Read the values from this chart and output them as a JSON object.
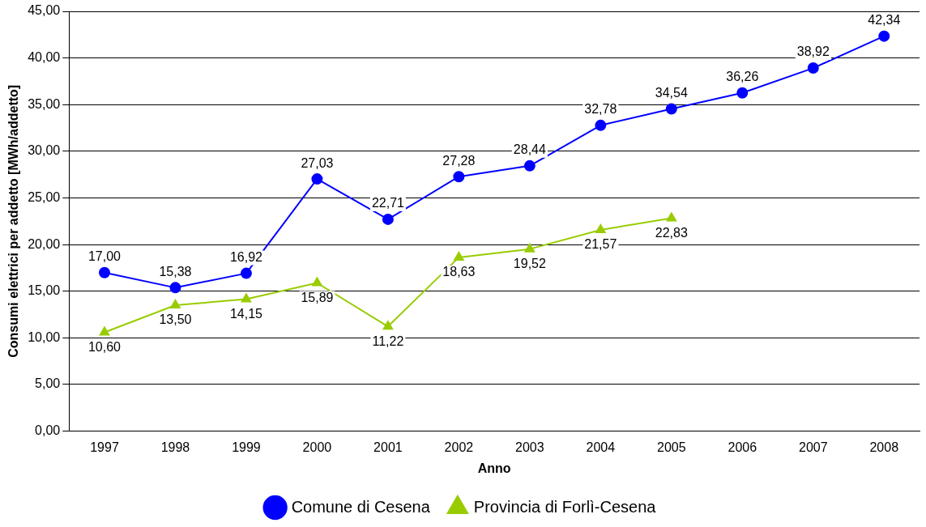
{
  "chart_data": {
    "type": "line",
    "xlabel": "Anno",
    "ylabel": "Consumi elettrici per addetto [MWh/addetto]",
    "categories": [
      "1997",
      "1998",
      "1999",
      "2000",
      "2001",
      "2002",
      "2003",
      "2004",
      "2005",
      "2006",
      "2007",
      "2008"
    ],
    "series": [
      {
        "name": "Comune di Cesena",
        "color": "#0000ff",
        "marker": "circle",
        "values": [
          17.0,
          15.38,
          16.92,
          27.03,
          22.71,
          27.28,
          28.44,
          32.78,
          34.54,
          36.26,
          38.92,
          42.34
        ],
        "value_labels": [
          "17,00",
          "15,38",
          "16,92",
          "27,03",
          "22,71",
          "27,28",
          "28,44",
          "32,78",
          "34,54",
          "36,26",
          "38,92",
          "42,34"
        ]
      },
      {
        "name": "Provincia di Forlì-Cesena",
        "color": "#99cc00",
        "marker": "triangle",
        "values": [
          10.6,
          13.5,
          14.15,
          15.89,
          11.22,
          18.63,
          19.52,
          21.57,
          22.83,
          null,
          null,
          null
        ],
        "value_labels": [
          "10,60",
          "13,50",
          "14,15",
          "15,89",
          "11,22",
          "18,63",
          "19,52",
          "21,57",
          "22,83",
          null,
          null,
          null
        ]
      }
    ],
    "ylim": [
      0,
      45
    ],
    "yticks": [
      {
        "value": 0,
        "label": "0,00"
      },
      {
        "value": 5,
        "label": "5,00"
      },
      {
        "value": 10,
        "label": "10,00"
      },
      {
        "value": 15,
        "label": "15,00"
      },
      {
        "value": 20,
        "label": "20,00"
      },
      {
        "value": 25,
        "label": "25,00"
      },
      {
        "value": 30,
        "label": "30,00"
      },
      {
        "value": 35,
        "label": "35,00"
      },
      {
        "value": 40,
        "label": "40,00"
      },
      {
        "value": 45,
        "label": "45,00"
      }
    ],
    "grid": "y",
    "legend": "bottom",
    "line_style": "solid"
  }
}
